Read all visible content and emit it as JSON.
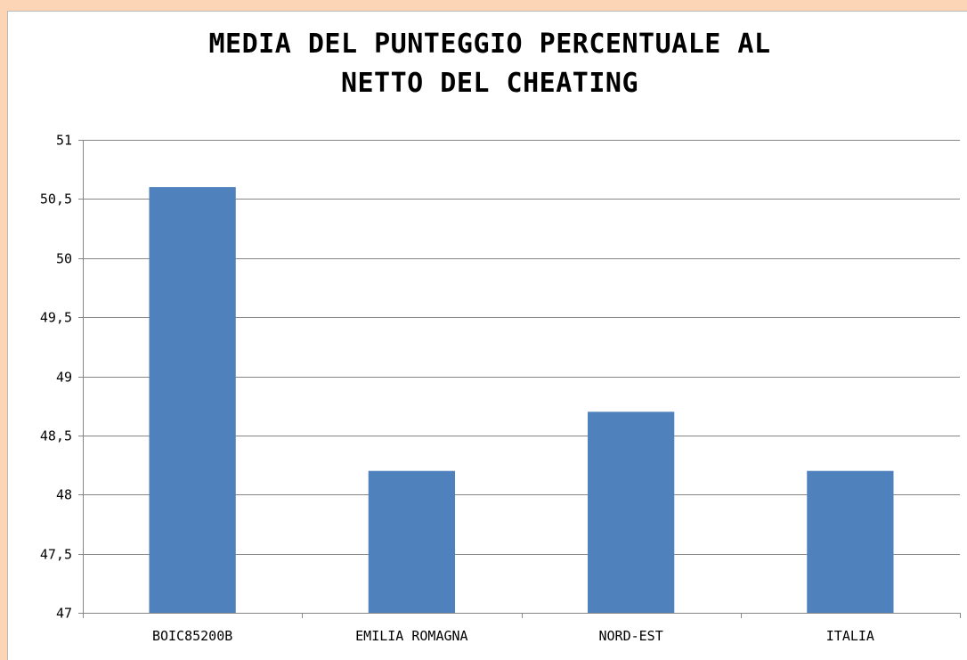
{
  "chart_data": {
    "type": "bar",
    "title_lines": [
      "MEDIA DEL PUNTEGGIO PERCENTUALE  AL",
      "NETTO DEL CHEATING"
    ],
    "categories": [
      "BOIC85200B",
      "EMILIA ROMAGNA",
      "NORD-EST",
      "ITALIA"
    ],
    "series": [
      {
        "values": [
          50.6,
          48.2,
          48.7,
          48.2
        ]
      }
    ],
    "ylim": [
      47,
      51
    ],
    "yticks": [
      47,
      47.5,
      48,
      48.5,
      49,
      49.5,
      50,
      50.5,
      51
    ],
    "ytick_labels": [
      "47",
      "47,5",
      "48",
      "48,5",
      "49",
      "49,5",
      "50",
      "50,5",
      "51"
    ],
    "xlabel": "",
    "ylabel": "",
    "grid": true,
    "legend": "none",
    "bar_color": "#4f81bd",
    "gridline_color": "#868686",
    "page_background": "#fbd5b5"
  }
}
